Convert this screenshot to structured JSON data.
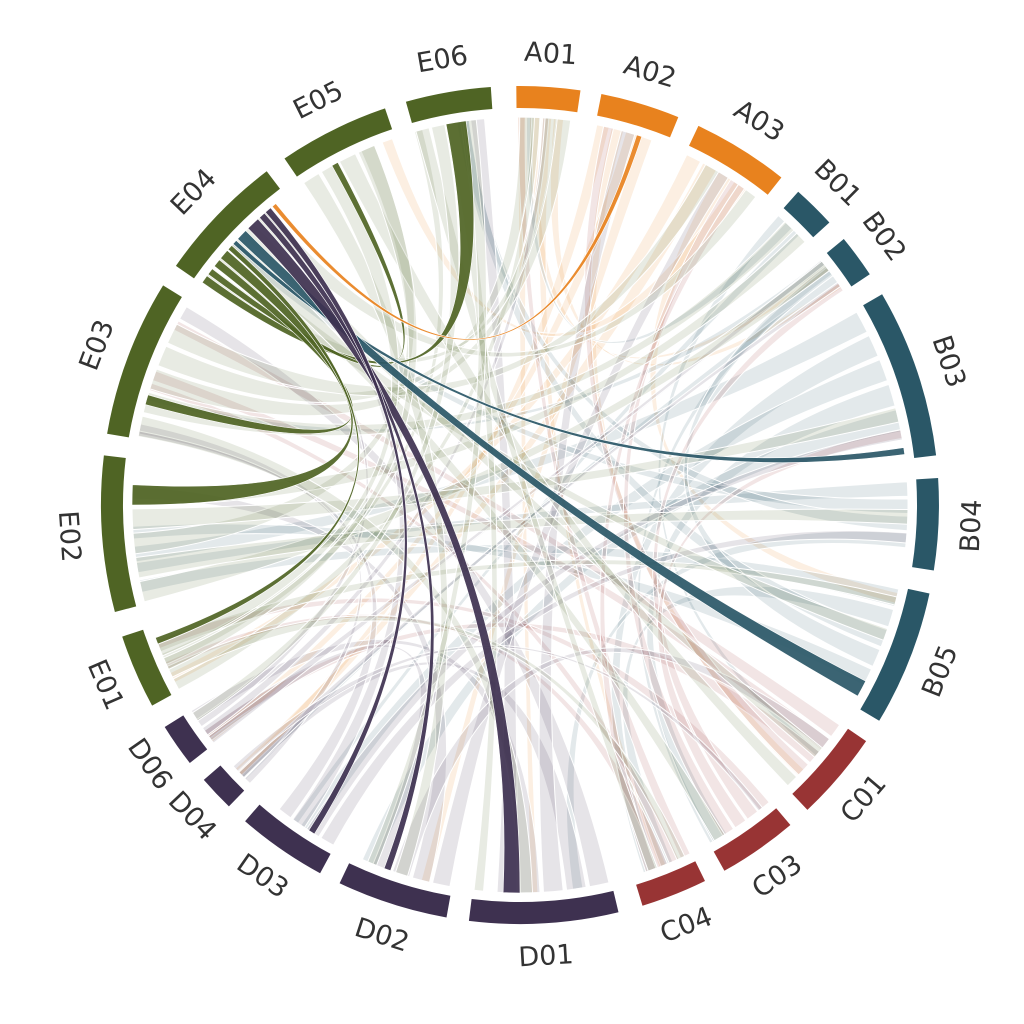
{
  "colors": {
    "A": "#e8821e",
    "B": "#2a5767",
    "C": "#983434",
    "D": "#3e3150",
    "E": "#4f6424"
  },
  "chart_data": {
    "type": "chord",
    "segments": [
      {
        "id": "A01",
        "group": "A",
        "label": "A01"
      },
      {
        "id": "A02",
        "group": "A",
        "label": "A02"
      },
      {
        "id": "A03",
        "group": "A",
        "label": "A03"
      },
      {
        "id": "B01",
        "group": "B",
        "label": "B01"
      },
      {
        "id": "B02",
        "group": "B",
        "label": "B02"
      },
      {
        "id": "B03",
        "group": "B",
        "label": "B03"
      },
      {
        "id": "B04",
        "group": "B",
        "label": "B04"
      },
      {
        "id": "B05",
        "group": "B",
        "label": "B05"
      },
      {
        "id": "C01",
        "group": "C",
        "label": "C01"
      },
      {
        "id": "C03",
        "group": "C",
        "label": "C03"
      },
      {
        "id": "C04",
        "group": "C",
        "label": "C04"
      },
      {
        "id": "D01",
        "group": "D",
        "label": "D01"
      },
      {
        "id": "D02",
        "group": "D",
        "label": "D02"
      },
      {
        "id": "D03",
        "group": "D",
        "label": "D03"
      },
      {
        "id": "D04",
        "group": "D",
        "label": "D04"
      },
      {
        "id": "D06",
        "group": "D",
        "label": "D06"
      },
      {
        "id": "E01",
        "group": "E",
        "label": "E01"
      },
      {
        "id": "E02",
        "group": "E",
        "label": "E02"
      },
      {
        "id": "E03",
        "group": "E",
        "label": "E03"
      },
      {
        "id": "E04",
        "group": "E",
        "label": "E04"
      },
      {
        "id": "E05",
        "group": "E",
        "label": "E05"
      },
      {
        "id": "E06",
        "group": "E",
        "label": "E06"
      }
    ],
    "highlighted_links": [
      {
        "source": "E04",
        "target": "E06"
      },
      {
        "source": "E04",
        "target": "E05"
      },
      {
        "source": "E04",
        "target": "E03"
      },
      {
        "source": "E04",
        "target": "E02"
      },
      {
        "source": "E04",
        "target": "E01"
      },
      {
        "source": "E04",
        "target": "B03"
      },
      {
        "source": "E04",
        "target": "B05"
      },
      {
        "source": "E04",
        "target": "D01"
      },
      {
        "source": "E04",
        "target": "D02"
      },
      {
        "source": "E04",
        "target": "D03"
      },
      {
        "source": "E04",
        "target": "A02"
      }
    ]
  }
}
